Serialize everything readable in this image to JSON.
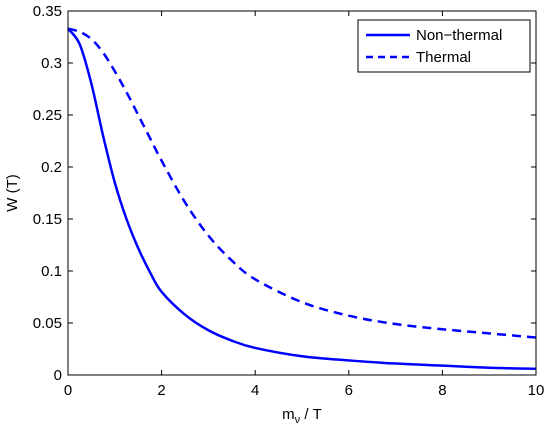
{
  "chart_data": {
    "type": "line",
    "title": "",
    "xlabel": "m_ν / T",
    "xlabel_main": "m",
    "xlabel_sub": "ν",
    "xlabel_rest": " / T",
    "ylabel": "W (T)",
    "xlim": [
      0,
      10
    ],
    "ylim": [
      0,
      0.35
    ],
    "xticks": [
      0,
      2,
      4,
      6,
      8,
      10
    ],
    "xtick_labels": [
      "0",
      "2",
      "4",
      "6",
      "8",
      "10"
    ],
    "yticks": [
      0,
      0.05,
      0.1,
      0.15,
      0.2,
      0.25,
      0.3,
      0.35
    ],
    "ytick_labels": [
      "0",
      "0.05",
      "0.1",
      "0.15",
      "0.2",
      "0.25",
      "0.3",
      "0.35"
    ],
    "grid": false,
    "legend_position": "top-right",
    "series": [
      {
        "name": "Non−thermal",
        "style": "solid",
        "color": "#0000ff",
        "x": [
          0,
          0.25,
          0.5,
          0.75,
          1.0,
          1.25,
          1.5,
          1.75,
          2.0,
          2.5,
          3.0,
          3.5,
          4.0,
          5.0,
          6.0,
          7.0,
          8.0,
          9.0,
          10.0
        ],
        "y": [
          0.333,
          0.318,
          0.28,
          0.23,
          0.185,
          0.15,
          0.122,
          0.099,
          0.08,
          0.058,
          0.043,
          0.033,
          0.026,
          0.018,
          0.014,
          0.011,
          0.009,
          0.007,
          0.006
        ]
      },
      {
        "name": "Thermal",
        "style": "dashed",
        "color": "#0000ff",
        "x": [
          0,
          0.25,
          0.5,
          0.75,
          1.0,
          1.25,
          1.5,
          1.75,
          2.0,
          2.5,
          3.0,
          3.5,
          4.0,
          5.0,
          6.0,
          7.0,
          8.0,
          9.0,
          10.0
        ],
        "y": [
          0.333,
          0.33,
          0.323,
          0.31,
          0.292,
          0.272,
          0.25,
          0.228,
          0.206,
          0.166,
          0.134,
          0.11,
          0.092,
          0.07,
          0.057,
          0.049,
          0.044,
          0.04,
          0.036
        ]
      }
    ]
  }
}
